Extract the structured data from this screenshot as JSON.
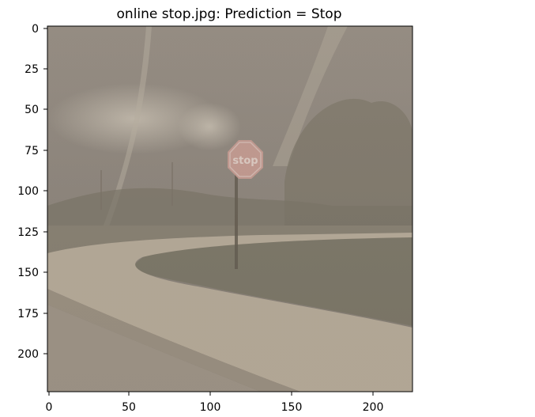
{
  "title": "online stop.jpg: Prediction = Stop",
  "image": {
    "content": "foggy-street-scene-with-stop-sign",
    "sign_text": "stop",
    "colors": {
      "haze": "#a59a8b",
      "sky": "#8d847b",
      "grass": "#6e6a5c",
      "sidewalk": "#b1a594",
      "road": "#958b7f",
      "sign": "#c2938c"
    }
  },
  "axes": {
    "x": {
      "ticks": [
        "0",
        "50",
        "100",
        "150",
        "200"
      ],
      "range": [
        -0.5,
        223.5
      ]
    },
    "y": {
      "ticks": [
        "0",
        "25",
        "50",
        "75",
        "100",
        "125",
        "150",
        "175",
        "200"
      ],
      "range": [
        -0.5,
        223.5
      ]
    }
  }
}
